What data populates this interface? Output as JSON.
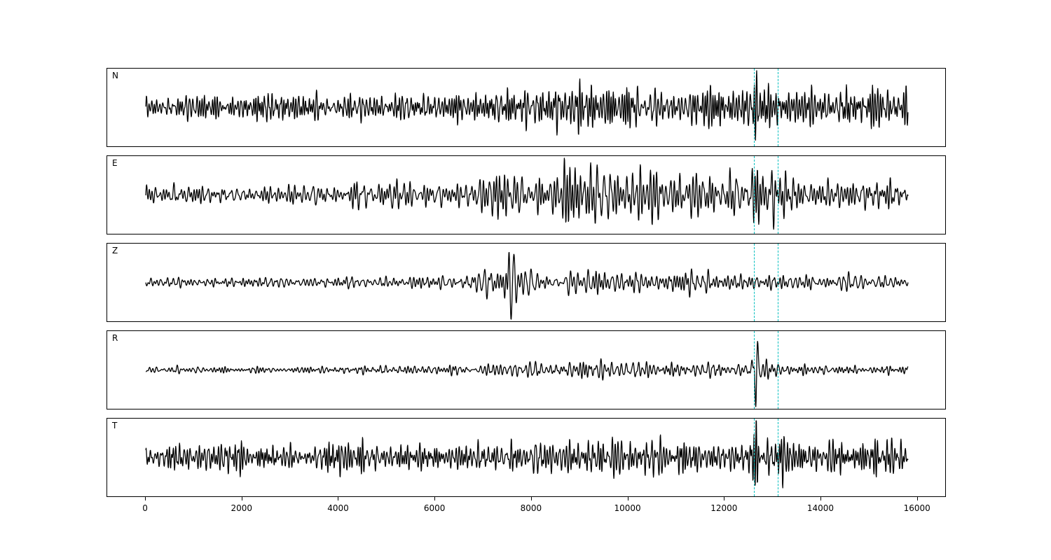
{
  "colors": {
    "background": "#ffffff",
    "trace": "#000000",
    "marker": "#00bfbf",
    "panel_border": "#000000"
  },
  "chart_data": {
    "type": "line",
    "title": "",
    "xlabel": "",
    "ylabel": "",
    "grid": false,
    "legend": "none",
    "xlim": [
      -800,
      16600
    ],
    "x_data_range": [
      0,
      15800
    ],
    "xticks": [
      0,
      2000,
      4000,
      6000,
      8000,
      10000,
      12000,
      14000,
      16000
    ],
    "xtick_labels": [
      "0",
      "2000",
      "4000",
      "6000",
      "8000",
      "10000",
      "12000",
      "14000",
      "16000"
    ],
    "marker_lines": [
      12600,
      13100
    ],
    "channels": [
      {
        "label": "N",
        "seed": 7,
        "freq_range": [
          0.3,
          0.95
        ],
        "envelope": [
          [
            0,
            0.6
          ],
          [
            3000,
            0.62
          ],
          [
            6000,
            0.65
          ],
          [
            7000,
            0.7
          ],
          [
            7600,
            0.85
          ],
          [
            9000,
            0.95
          ],
          [
            10400,
            1.0
          ],
          [
            11500,
            0.9
          ],
          [
            12480,
            0.85
          ],
          [
            12540,
            0.9
          ],
          [
            12650,
            2.3
          ],
          [
            12760,
            0.95
          ],
          [
            13200,
            0.85
          ],
          [
            14500,
            0.8
          ],
          [
            15800,
            0.75
          ]
        ]
      },
      {
        "label": "E",
        "seed": 13,
        "freq_range": [
          0.2,
          0.75
        ],
        "envelope": [
          [
            0,
            0.26
          ],
          [
            3000,
            0.27
          ],
          [
            4600,
            0.3
          ],
          [
            5000,
            0.5
          ],
          [
            5400,
            0.32
          ],
          [
            6600,
            0.35
          ],
          [
            7100,
            0.75
          ],
          [
            7800,
            0.65
          ],
          [
            8600,
            0.8
          ],
          [
            9300,
            0.95
          ],
          [
            10000,
            0.7
          ],
          [
            11000,
            0.65
          ],
          [
            12480,
            0.6
          ],
          [
            12540,
            0.65
          ],
          [
            12650,
            2.4
          ],
          [
            12760,
            0.7
          ],
          [
            13300,
            0.55
          ],
          [
            14500,
            0.45
          ],
          [
            15800,
            0.42
          ]
        ]
      },
      {
        "label": "Z",
        "seed": 21,
        "freq_range": [
          0.2,
          0.75
        ],
        "envelope": [
          [
            0,
            0.3
          ],
          [
            3500,
            0.32
          ],
          [
            4350,
            0.55
          ],
          [
            4600,
            0.32
          ],
          [
            6200,
            0.4
          ],
          [
            7000,
            0.7
          ],
          [
            7450,
            1.9
          ],
          [
            7700,
            1.5
          ],
          [
            8100,
            1.1
          ],
          [
            8800,
            0.95
          ],
          [
            9600,
            0.75
          ],
          [
            10500,
            0.65
          ],
          [
            11500,
            0.6
          ],
          [
            12600,
            0.58
          ],
          [
            13500,
            0.55
          ],
          [
            14500,
            0.5
          ],
          [
            15800,
            0.45
          ]
        ]
      },
      {
        "label": "R",
        "seed": 29,
        "freq_range": [
          0.2,
          0.75
        ],
        "envelope": [
          [
            0,
            0.3
          ],
          [
            3000,
            0.32
          ],
          [
            5000,
            0.38
          ],
          [
            6600,
            0.4
          ],
          [
            7100,
            0.8
          ],
          [
            7900,
            0.7
          ],
          [
            8700,
            0.85
          ],
          [
            9400,
            1.0
          ],
          [
            10200,
            0.75
          ],
          [
            11200,
            0.7
          ],
          [
            12480,
            0.65
          ],
          [
            12540,
            0.7
          ],
          [
            12650,
            2.5
          ],
          [
            12760,
            0.75
          ],
          [
            13300,
            0.6
          ],
          [
            14500,
            0.55
          ],
          [
            15800,
            0.5
          ]
        ]
      },
      {
        "label": "T",
        "seed": 37,
        "freq_range": [
          0.3,
          0.95
        ],
        "envelope": [
          [
            0,
            0.55
          ],
          [
            3000,
            0.58
          ],
          [
            6000,
            0.6
          ],
          [
            7000,
            0.7
          ],
          [
            7800,
            0.8
          ],
          [
            9000,
            0.85
          ],
          [
            10500,
            0.8
          ],
          [
            11500,
            0.75
          ],
          [
            12480,
            0.75
          ],
          [
            12540,
            0.8
          ],
          [
            12650,
            2.0
          ],
          [
            12760,
            0.85
          ],
          [
            13800,
            0.75
          ],
          [
            15000,
            0.7
          ],
          [
            15800,
            0.68
          ]
        ]
      }
    ]
  }
}
